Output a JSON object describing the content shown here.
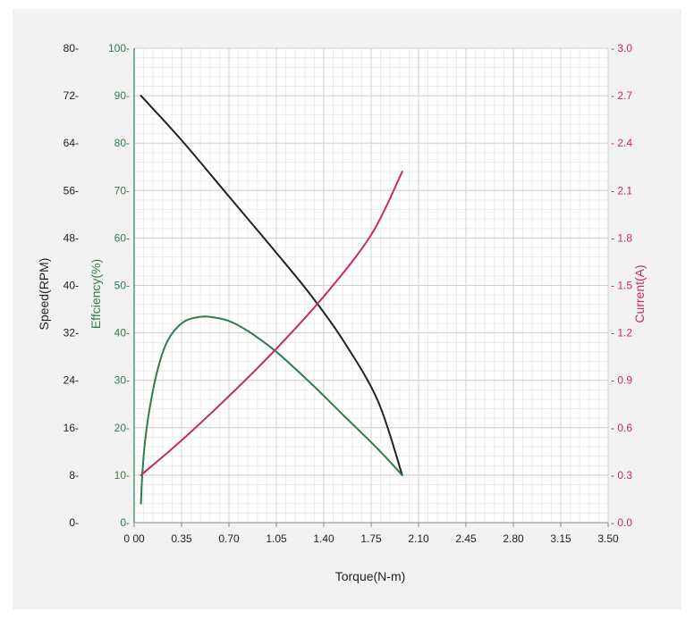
{
  "chart_data": {
    "type": "line",
    "title": "",
    "xlabel": "Torque(N-m)",
    "x_ticks": [
      "0 00",
      "0.35",
      "0.70",
      "1.05",
      "1.40",
      "1.75",
      "2.10",
      "2.45",
      "2.80",
      "3.15",
      "3.50"
    ],
    "xlim": [
      0,
      3.5
    ],
    "axes": {
      "speed": {
        "label": "Speed(RPM)",
        "ticks": [
          "0",
          "8",
          "16",
          "24",
          "32",
          "40",
          "48",
          "56",
          "64",
          "72",
          "80"
        ],
        "range": [
          0,
          80
        ],
        "color": "#222222"
      },
      "efficiency": {
        "label": "Effciency(%)",
        "ticks": [
          "0",
          "10",
          "20",
          "30",
          "40",
          "50",
          "60",
          "70",
          "80",
          "90",
          "100"
        ],
        "range": [
          0,
          100
        ],
        "color": "#2e7d4f"
      },
      "current": {
        "label": "Current(A)",
        "ticks": [
          "0.0",
          "0.3",
          "0.6",
          "0.9",
          "1.2",
          "1.5",
          "1.8",
          "2.1",
          "2.4",
          "2.7",
          "3.0"
        ],
        "range": [
          0,
          3.0
        ],
        "color": "#c8285f"
      }
    },
    "series": [
      {
        "id": "speed",
        "axis": "speed",
        "color": "#222222",
        "x": [
          0.05,
          0.35,
          0.7,
          1.05,
          1.3,
          1.55,
          1.8,
          1.98
        ],
        "y": [
          72.0,
          64.5,
          55.0,
          45.5,
          38.5,
          30.5,
          20.5,
          8.0
        ]
      },
      {
        "id": "efficiency",
        "axis": "efficiency",
        "color": "#2e7d4f",
        "x": [
          0.05,
          0.06,
          0.08,
          0.12,
          0.18,
          0.25,
          0.35,
          0.45,
          0.55,
          0.7,
          0.85,
          1.05,
          1.3,
          1.55,
          1.8,
          1.98
        ],
        "y": [
          4.0,
          10.0,
          17.0,
          25.0,
          33.0,
          38.5,
          42.0,
          43.2,
          43.4,
          42.5,
          40.2,
          36.0,
          29.5,
          22.5,
          15.5,
          10.0
        ]
      },
      {
        "id": "current",
        "axis": "current",
        "color": "#c8285f",
        "x": [
          0.05,
          0.35,
          0.7,
          1.05,
          1.4,
          1.75,
          1.98
        ],
        "y": [
          0.3,
          0.52,
          0.8,
          1.1,
          1.43,
          1.82,
          2.22
        ]
      }
    ],
    "grid": true
  }
}
